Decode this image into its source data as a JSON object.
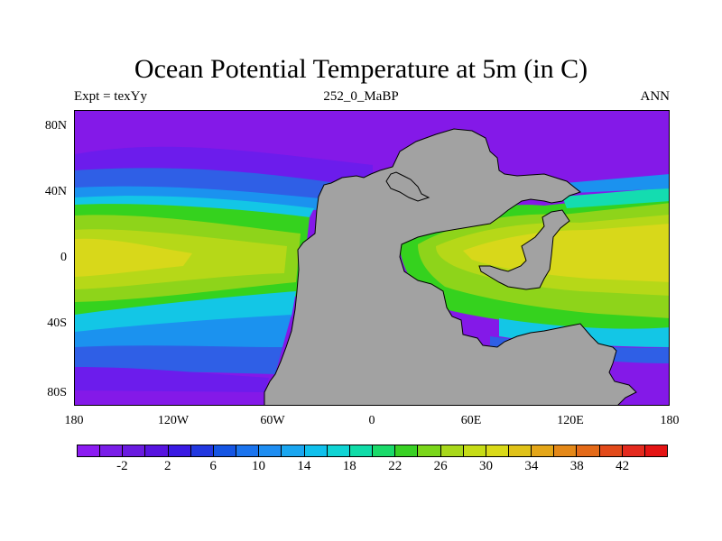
{
  "title": "Ocean Potential Temperature at 5m (in C)",
  "subtitle_left": "Expt = texYy",
  "subtitle_center": "252_0_MaBP",
  "subtitle_right": "ANN",
  "y_ticks": [
    "80N",
    "40N",
    "0",
    "40S",
    "80S"
  ],
  "x_ticks": [
    "180",
    "120W",
    "60W",
    "0",
    "60E",
    "120E",
    "180"
  ],
  "colorbar": {
    "labels": [
      "-2",
      "2",
      "6",
      "10",
      "14",
      "18",
      "22",
      "26",
      "30",
      "34",
      "38",
      "42"
    ],
    "colors": [
      "#8c1cf2",
      "#7a1ee8",
      "#6a1be0",
      "#5714e0",
      "#3a1ae3",
      "#2238e0",
      "#1555e3",
      "#1b74ee",
      "#1f8ef2",
      "#1aa6f0",
      "#10c0ec",
      "#10d4d4",
      "#10dca8",
      "#1ada6a",
      "#39d124",
      "#7ad61a",
      "#a8d81a",
      "#c6dc16",
      "#dada18",
      "#e0c218",
      "#e4a618",
      "#e48818",
      "#e46a18",
      "#e24a1a",
      "#e42a1e",
      "#e41414"
    ]
  },
  "map": {
    "land_color": "#a2a2a2",
    "palette": {
      "violet": "#8419e8",
      "purple": "#6c1cec",
      "blue": "#2f5fe6",
      "lightblue": "#1b92ef",
      "cyan": "#13c6e6",
      "teal": "#14dcb0",
      "green": "#35d21e",
      "lime": "#8ed41a",
      "yellowgreen": "#b6d818",
      "yellow": "#d8d81a"
    }
  }
}
